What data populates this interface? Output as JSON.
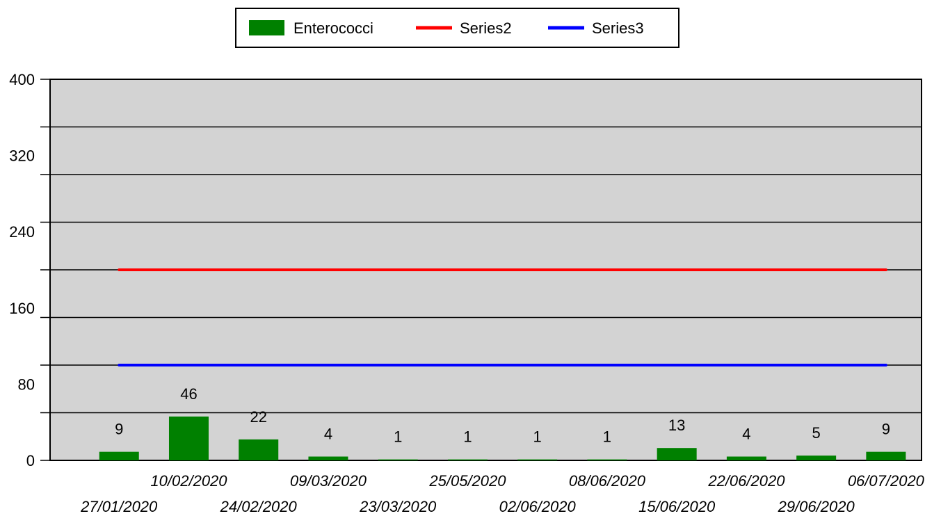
{
  "chart_data": {
    "type": "bar",
    "categories": [
      "27/01/2020",
      "10/02/2020",
      "24/02/2020",
      "09/03/2020",
      "23/03/2020",
      "25/05/2020",
      "02/06/2020",
      "08/06/2020",
      "15/06/2020",
      "22/06/2020",
      "29/06/2020",
      "06/07/2020"
    ],
    "series": [
      {
        "name": "Enterococci",
        "type": "bar",
        "color": "#008000",
        "values": [
          9,
          46,
          22,
          4,
          1,
          1,
          1,
          1,
          13,
          4,
          5,
          9
        ]
      },
      {
        "name": "Series2",
        "type": "line",
        "color": "#ff0000",
        "values": [
          200,
          200,
          200,
          200,
          200,
          200,
          200,
          200,
          200,
          200,
          200,
          200
        ]
      },
      {
        "name": "Series3",
        "type": "line",
        "color": "#0000ff",
        "values": [
          100,
          100,
          100,
          100,
          100,
          100,
          100,
          100,
          100,
          100,
          100,
          100
        ]
      }
    ],
    "ylim": [
      0,
      400
    ],
    "yticks": [
      0,
      80,
      160,
      240,
      320,
      400
    ],
    "ygrid_step": 50,
    "grid": true,
    "legend_position": "top-center",
    "plot_background": "#d3d3d3"
  }
}
